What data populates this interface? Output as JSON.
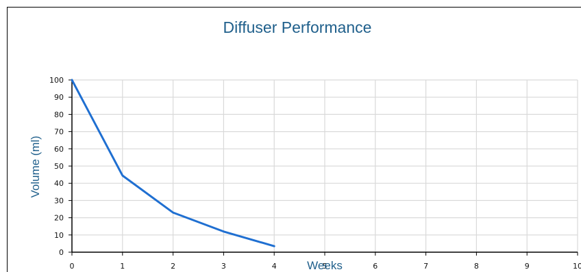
{
  "chart_data": {
    "type": "line",
    "title": "Diffuser Performance",
    "xlabel": "Weeks",
    "ylabel": "Volume (ml)",
    "x": [
      0,
      1,
      2,
      3,
      4
    ],
    "series": [
      {
        "values": [
          100,
          44.5,
          23,
          12,
          3.5
        ]
      }
    ],
    "xlim": [
      0,
      10
    ],
    "ylim": [
      0,
      100
    ],
    "x_ticks": [
      "0",
      "1",
      "2",
      "3",
      "4",
      "5",
      "6",
      "7",
      "8",
      "9",
      "10"
    ],
    "y_ticks": [
      "0",
      "10",
      "20",
      "30",
      "40",
      "50",
      "60",
      "70",
      "80",
      "90",
      "100"
    ],
    "grid": true,
    "legend": "none",
    "line_color": "#1f6fd1",
    "grid_color": "#d9d9d9"
  }
}
